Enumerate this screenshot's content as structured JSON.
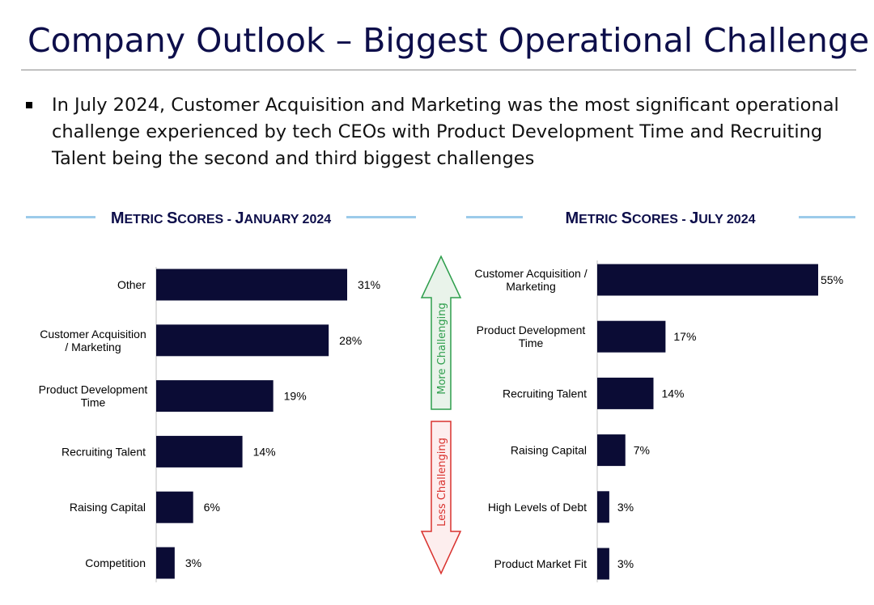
{
  "slide": {
    "title": "Company Outlook – Biggest Operational Challenge",
    "bullet": "In July 2024, Customer Acquisition and Marketing was the most significant operational challenge experienced by tech CEOs with Product Development Time and Recruiting Talent being the second and third biggest challenges"
  },
  "colors": {
    "bar": "#0b0c35",
    "title": "#0d0e4a",
    "heading_line": "#9ccbea",
    "more_arrow": "#2e9e4c",
    "less_arrow": "#d9322e"
  },
  "arrows": {
    "up_label": "More Challenging",
    "down_label": "Less Challenging"
  },
  "chart_data": [
    {
      "type": "bar",
      "orientation": "horizontal",
      "title": "Metric Scores - January 2024",
      "title_parts": [
        "M",
        "ETRIC ",
        "S",
        "CORES - ",
        "J",
        "ANUARY 2024"
      ],
      "categories": [
        [
          "Other"
        ],
        [
          "Customer Acquisition",
          "/ Marketing"
        ],
        [
          "Product Development",
          "Time"
        ],
        [
          "Recruiting Talent"
        ],
        [
          "Raising Capital"
        ],
        [
          "Competition"
        ]
      ],
      "values": [
        31,
        28,
        19,
        14,
        6,
        3
      ],
      "labels": [
        "31%",
        "28%",
        "19%",
        "14%",
        "6%",
        "3%"
      ],
      "unit": "%",
      "xlim": [
        0,
        31
      ]
    },
    {
      "type": "bar",
      "orientation": "horizontal",
      "title": "Metric Scores - July 2024",
      "title_parts": [
        "M",
        "ETRIC ",
        "S",
        "CORES - ",
        "J",
        "ULY 2024"
      ],
      "categories": [
        [
          "Customer Acquisition /",
          "Marketing"
        ],
        [
          "Product Development",
          "Time"
        ],
        [
          "Recruiting Talent"
        ],
        [
          "Raising Capital"
        ],
        [
          "High Levels of Debt"
        ],
        [
          "Product Market Fit"
        ]
      ],
      "values": [
        55,
        17,
        14,
        7,
        3,
        3
      ],
      "labels": [
        "55%",
        "17%",
        "14%",
        "7%",
        "3%",
        "3%"
      ],
      "unit": "%",
      "xlim": [
        0,
        55
      ]
    }
  ]
}
